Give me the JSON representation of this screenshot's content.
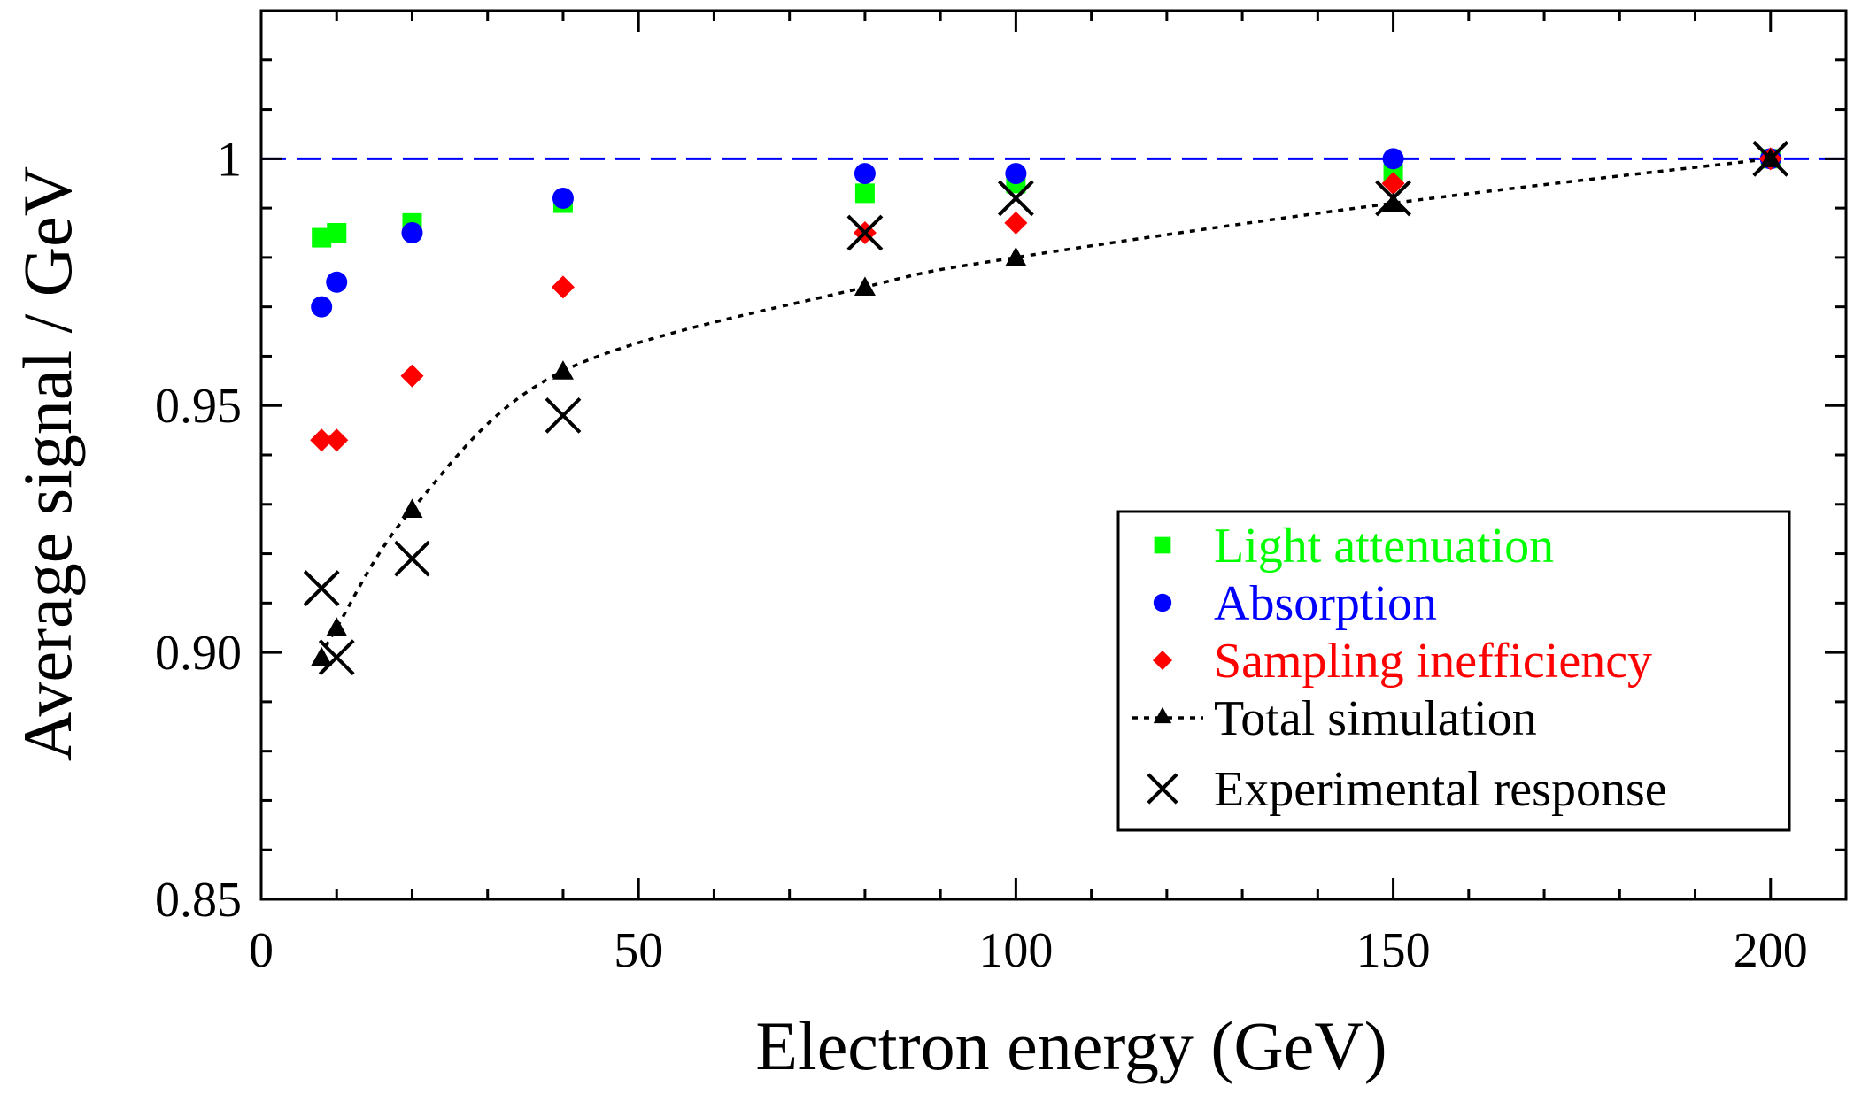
{
  "chart_data": {
    "type": "scatter",
    "title": "",
    "xlabel": "Electron energy (GeV)",
    "ylabel": "Average signal / GeV",
    "xlim": [
      0,
      210
    ],
    "ylim": [
      0.85,
      1.03
    ],
    "x_ticks": [
      0,
      50,
      100,
      150,
      200
    ],
    "x_tick_labels": [
      "0",
      "50",
      "100",
      "150",
      "200"
    ],
    "y_ticks": [
      0.85,
      0.9,
      0.95,
      1.0
    ],
    "y_tick_labels": [
      "0.85",
      "0.90",
      "0.95",
      "1"
    ],
    "grid": false,
    "legend_position": "bottom-right",
    "reference_line": {
      "y": 1.0,
      "style": "dashed",
      "color": "#0000ff"
    },
    "series": [
      {
        "name": "Light attenuation",
        "marker": "square",
        "color": "#00ff00",
        "line": "none",
        "x": [
          8,
          10,
          20,
          40,
          80,
          100,
          150,
          200
        ],
        "y": [
          0.984,
          0.985,
          0.987,
          0.991,
          0.993,
          0.995,
          0.997,
          1.0
        ]
      },
      {
        "name": "Absorption",
        "marker": "circle",
        "color": "#0000ff",
        "line": "none",
        "x": [
          8,
          10,
          20,
          40,
          80,
          100,
          150,
          200
        ],
        "y": [
          0.97,
          0.975,
          0.985,
          0.992,
          0.997,
          0.997,
          1.0,
          1.0
        ]
      },
      {
        "name": "Sampling inefficiency",
        "marker": "diamond",
        "color": "#ff0000",
        "line": "none",
        "x": [
          8,
          10,
          20,
          40,
          80,
          100,
          150,
          200
        ],
        "y": [
          0.943,
          0.943,
          0.956,
          0.974,
          0.985,
          0.987,
          0.995,
          1.0
        ]
      },
      {
        "name": "Total simulation",
        "marker": "triangle",
        "color": "#000000",
        "line": "dotted",
        "x": [
          8,
          10,
          20,
          40,
          80,
          100,
          150,
          200
        ],
        "y": [
          0.899,
          0.905,
          0.929,
          0.957,
          0.974,
          0.98,
          0.991,
          1.0
        ]
      },
      {
        "name": "Experimental response",
        "marker": "x",
        "color": "#000000",
        "line": "none",
        "x": [
          8,
          10,
          20,
          40,
          80,
          100,
          150,
          200
        ],
        "y": [
          0.913,
          0.899,
          0.919,
          0.948,
          0.985,
          0.992,
          0.992,
          1.0
        ]
      }
    ]
  }
}
